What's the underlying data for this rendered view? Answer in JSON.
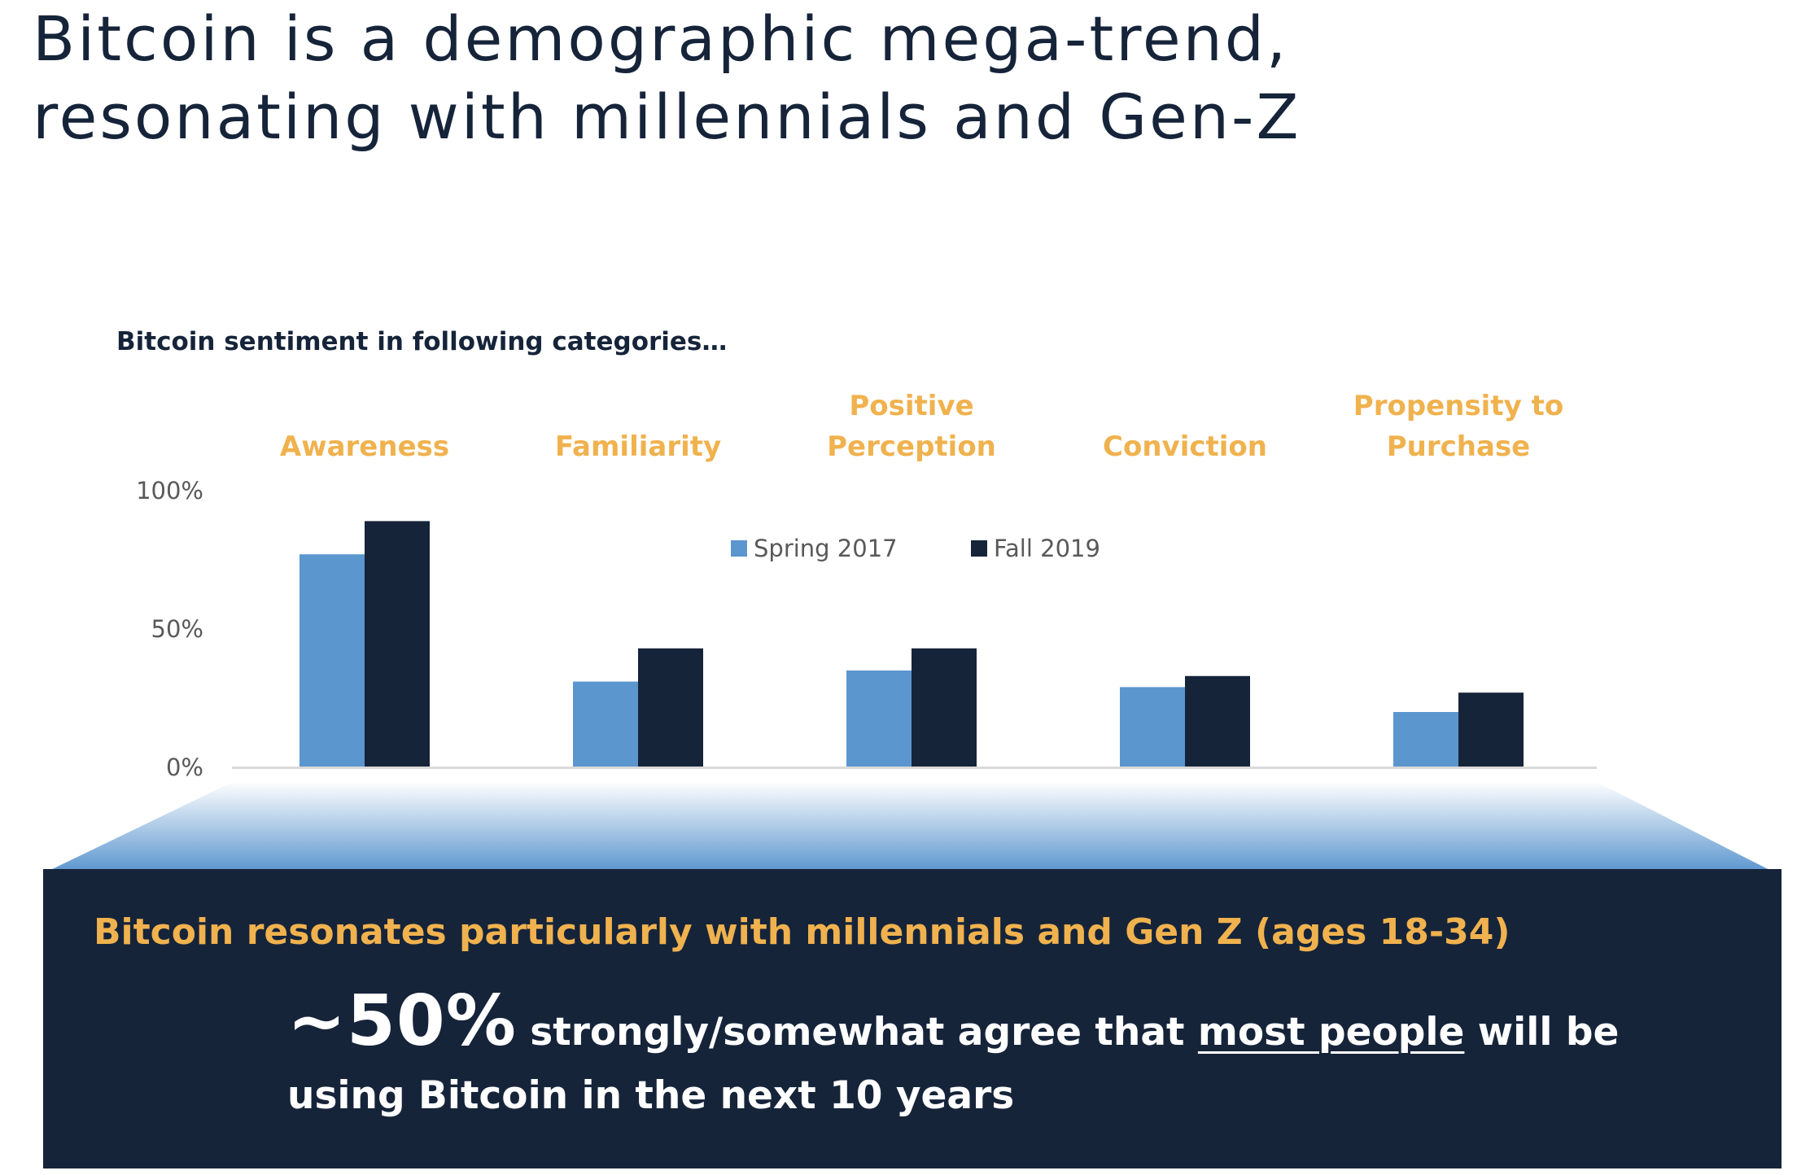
{
  "slide": {
    "title_line1": "Bitcoin is a demographic mega-trend,",
    "title_line2": "resonating with millennials and Gen-Z"
  },
  "colors": {
    "navy": "#16243a",
    "orange": "#f0b24e",
    "blue": "#5b96cf",
    "axis_gray": "#595959"
  },
  "chart_data": {
    "type": "bar",
    "title": "Bitcoin sentiment in following categories…",
    "categories": [
      [
        "Awareness"
      ],
      [
        "Familiarity"
      ],
      [
        "Positive",
        "Perception"
      ],
      [
        "Conviction"
      ],
      [
        "Propensity to",
        "Purchase"
      ]
    ],
    "series": [
      {
        "name": "Spring 2017",
        "color": "#5b96cf",
        "values": [
          77,
          31,
          35,
          29,
          20
        ]
      },
      {
        "name": "Fall 2019",
        "color": "#16243a",
        "values": [
          89,
          43,
          43,
          33,
          27
        ]
      }
    ],
    "yticks": [
      "0%",
      "50%",
      "100%"
    ],
    "ylim": [
      0,
      100
    ],
    "legend_position": "top-center",
    "grid": false
  },
  "takeaway": {
    "headline": "Bitcoin resonates particularly with millennials and Gen Z (ages 18-34)",
    "stat": "~50%",
    "text_before": " strongly/somewhat agree that ",
    "emphasis": "most people",
    "text_after": " will be using Bitcoin in the next 10 years"
  }
}
